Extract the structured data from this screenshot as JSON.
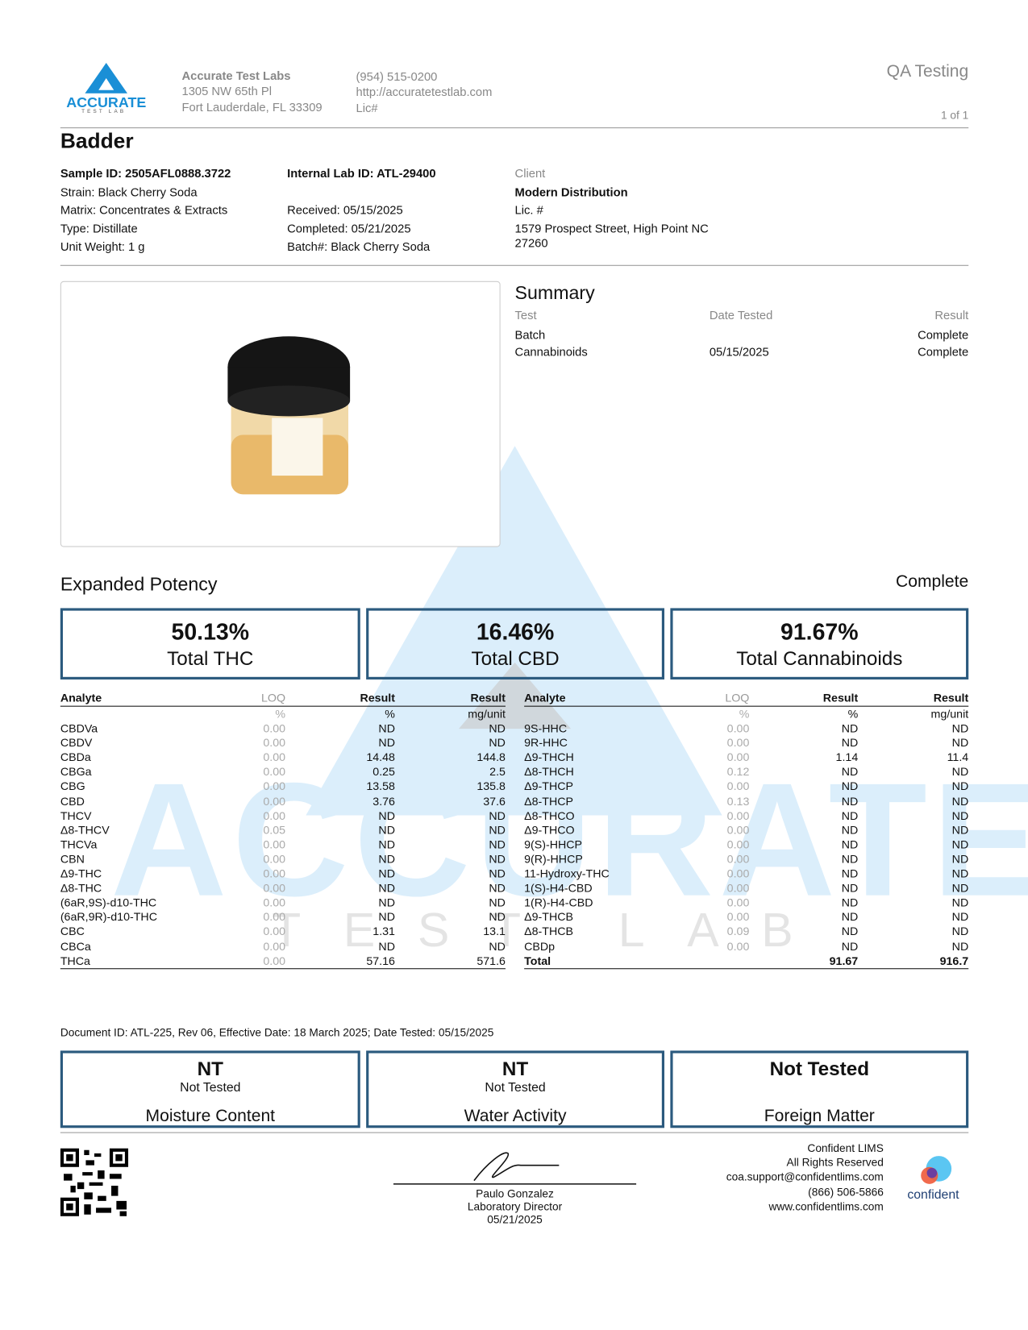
{
  "header": {
    "logo_text": "ACCURATE",
    "logo_sub": "TEST LAB",
    "lab_name": "Accurate Test Labs",
    "address_1": "1305 NW 65th Pl",
    "address_2": "Fort Lauderdale, FL 33309",
    "phone": "(954) 515-0200",
    "website": "http://accuratetestlab.com",
    "lic": "Lic#",
    "doc_type": "QA Testing",
    "page": "1 of 1"
  },
  "product_name": "Badder",
  "sample_info": {
    "left": [
      "Sample ID: 2505AFL0888.3722",
      "Strain: Black Cherry Soda",
      "Matrix: Concentrates & Extracts",
      "Type: Distillate",
      "Unit Weight: 1 g"
    ],
    "middle": {
      "internal_id": "Internal Lab ID: ATL-29400",
      "received": "Received: 05/15/2025",
      "completed": "Completed: 05/21/2025",
      "batch": "Batch#: Black Cherry Soda"
    },
    "client": {
      "label": "Client",
      "name": "Modern Distribution",
      "lic": "Lic. #",
      "address_1": "1579 Prospect Street, High Point NC",
      "address_2": "27260"
    }
  },
  "summary": {
    "title": "Summary",
    "headers": [
      "Test",
      "Date Tested",
      "Result"
    ],
    "rows": [
      {
        "test": "Batch",
        "result": "Complete"
      },
      {
        "test": "Cannabinoids",
        "date": "05/15/2025",
        "result": "Complete"
      }
    ]
  },
  "potency": {
    "title": "Expanded Potency",
    "status": "Complete",
    "totals": [
      {
        "value": "50.13%",
        "label": "Total THC"
      },
      {
        "value": "16.46%",
        "label": "Total CBD"
      },
      {
        "value": "91.67%",
        "label": "Total Cannabinoids"
      }
    ],
    "headers": [
      "Analyte",
      "LOQ",
      "Result",
      "Result"
    ],
    "units": [
      "%",
      "%",
      "mg/unit"
    ],
    "left_rows": [
      [
        "CBDVa",
        "0.00",
        "ND",
        "ND"
      ],
      [
        "CBDV",
        "0.00",
        "ND",
        "ND"
      ],
      [
        "CBDa",
        "0.00",
        "14.48",
        "144.8"
      ],
      [
        "CBGa",
        "0.00",
        "0.25",
        "2.5"
      ],
      [
        "CBG",
        "0.00",
        "13.58",
        "135.8"
      ],
      [
        "CBD",
        "0.00",
        "3.76",
        "37.6"
      ],
      [
        "THCV",
        "0.00",
        "ND",
        "ND"
      ],
      [
        "Δ8-THCV",
        "0.05",
        "ND",
        "ND"
      ],
      [
        "THCVa",
        "0.00",
        "ND",
        "ND"
      ],
      [
        "CBN",
        "0.00",
        "ND",
        "ND"
      ],
      [
        "Δ9-THC",
        "0.00",
        "ND",
        "ND"
      ],
      [
        "Δ8-THC",
        "0.00",
        "ND",
        "ND"
      ],
      [
        "(6aR,9S)-d10-THC",
        "0.00",
        "ND",
        "ND"
      ],
      [
        "(6aR,9R)-d10-THC",
        "0.00",
        "ND",
        "ND"
      ],
      [
        "CBC",
        "0.00",
        "1.31",
        "13.1"
      ],
      [
        "CBCa",
        "0.00",
        "ND",
        "ND"
      ],
      [
        "THCa",
        "0.00",
        "57.16",
        "571.6"
      ]
    ],
    "right_rows": [
      [
        "9S-HHC",
        "0.00",
        "ND",
        "ND"
      ],
      [
        "9R-HHC",
        "0.00",
        "ND",
        "ND"
      ],
      [
        "Δ9-THCH",
        "0.00",
        "1.14",
        "11.4"
      ],
      [
        "Δ8-THCH",
        "0.12",
        "ND",
        "ND"
      ],
      [
        "Δ9-THCP",
        "0.00",
        "ND",
        "ND"
      ],
      [
        "Δ8-THCP",
        "0.13",
        "ND",
        "ND"
      ],
      [
        "Δ8-THCO",
        "0.00",
        "ND",
        "ND"
      ],
      [
        "Δ9-THCO",
        "0.00",
        "ND",
        "ND"
      ],
      [
        "9(S)-HHCP",
        "0.00",
        "ND",
        "ND"
      ],
      [
        "9(R)-HHCP",
        "0.00",
        "ND",
        "ND"
      ],
      [
        "11-Hydroxy-THC",
        "0.00",
        "ND",
        "ND"
      ],
      [
        "1(S)-H4-CBD",
        "0.00",
        "ND",
        "ND"
      ],
      [
        "1(R)-H4-CBD",
        "0.00",
        "ND",
        "ND"
      ],
      [
        "Δ9-THCB",
        "0.00",
        "ND",
        "ND"
      ],
      [
        "Δ8-THCB",
        "0.09",
        "ND",
        "ND"
      ],
      [
        "CBDp",
        "0.00",
        "ND",
        "ND"
      ]
    ],
    "total_row": [
      "Total",
      "91.67",
      "916.7"
    ]
  },
  "watermark": {
    "text": "ACCURATE",
    "sub": "TEST LAB"
  },
  "document_id": "Document ID: ATL-225, Rev 06, Effective Date: 18 March 2025; Date Tested: 05/15/2025",
  "tests": [
    {
      "value": "NT",
      "sub": "Not Tested",
      "label": "Moisture Content"
    },
    {
      "value": "NT",
      "sub": "Not Tested",
      "label": "Water Activity"
    },
    {
      "value": "Not Tested",
      "label": "Foreign Matter"
    }
  ],
  "signature": {
    "name": "Paulo Gonzalez",
    "title": "Laboratory Director",
    "date": "05/21/2025"
  },
  "lims": {
    "lines": [
      "Confident LIMS",
      "All Rights Reserved",
      "coa.support@confidentlims.com",
      "(866) 506-5866",
      "www.confidentlims.com"
    ],
    "logo_text": "confident"
  }
}
